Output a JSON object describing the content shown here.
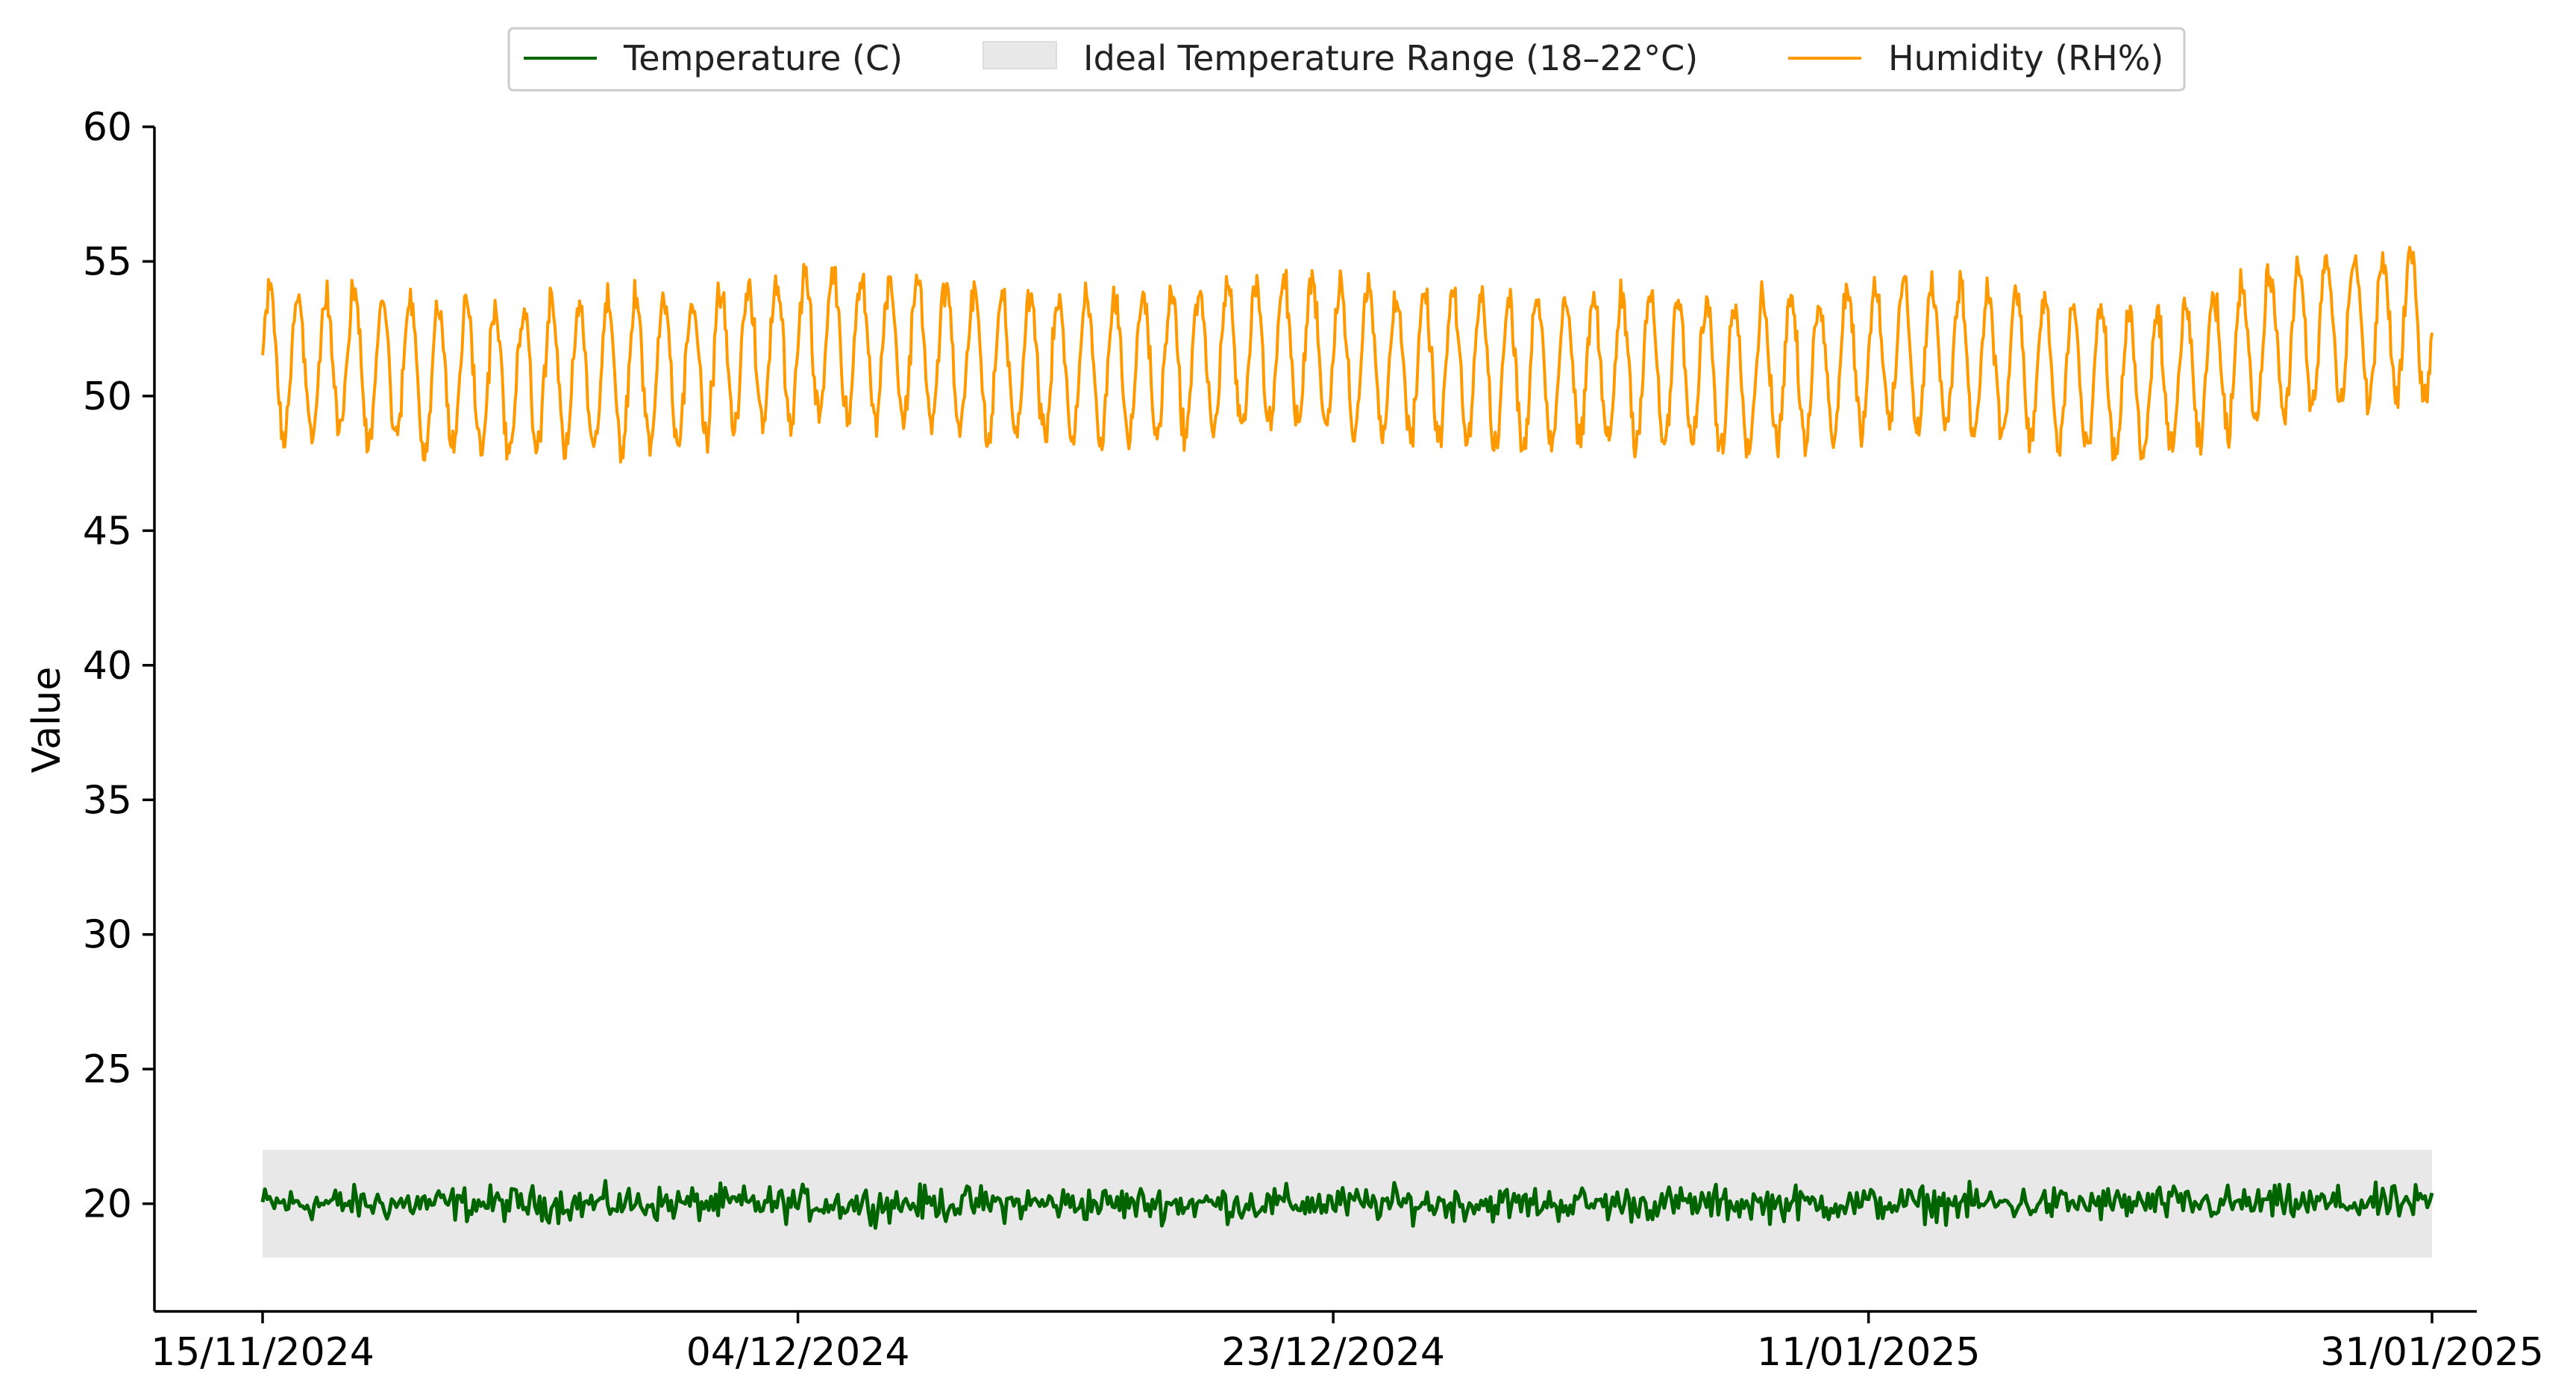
{
  "chart_data": {
    "type": "line",
    "title": "",
    "xlabel": "",
    "ylabel": "Value",
    "x_range": [
      "15/11/2024",
      "31/01/2025"
    ],
    "ylim": [
      16,
      60
    ],
    "y_ticks": [
      20,
      25,
      30,
      35,
      40,
      45,
      50,
      55,
      60
    ],
    "x_ticks": [
      "15/11/2024",
      "04/12/2024",
      "23/12/2024",
      "11/01/2025",
      "31/01/2025"
    ],
    "grid": false,
    "legend_position": "top-center",
    "band": {
      "name": "Ideal Temperature Range (18–22°C)",
      "y_min": 18,
      "y_max": 22,
      "x_start": "15/11/2024",
      "x_end": "31/01/2025",
      "color": "#e8e8e8"
    },
    "series": [
      {
        "name": "Temperature (C)",
        "color": "#006400",
        "mean": 20,
        "x_start": "15/11/2024",
        "x_end": "31/01/2025",
        "sample_every_hours": 2,
        "typical_range": [
          19.2,
          20.9
        ],
        "values_daily_mean": [
          20.0,
          20.0,
          20.0,
          20.0,
          20.0,
          20.0,
          20.0,
          20.0,
          20.0,
          20.0,
          20.0,
          20.0,
          20.0,
          20.0,
          20.0,
          20.0,
          20.0,
          20.0,
          20.0,
          20.0,
          20.0,
          20.0,
          20.0,
          20.0,
          20.0,
          20.0,
          20.0,
          20.0,
          20.0,
          20.0,
          20.0,
          20.0,
          20.0,
          20.0,
          20.0,
          20.0,
          20.0,
          20.0,
          20.0,
          20.0,
          20.0,
          20.0,
          20.0,
          20.0,
          20.0,
          20.0,
          20.0,
          20.0,
          20.0,
          20.0,
          20.0,
          20.0,
          20.0,
          20.0,
          20.0,
          20.0,
          20.0,
          20.0,
          20.0,
          20.0,
          20.0,
          20.0,
          20.0,
          20.0,
          20.0,
          20.0,
          20.0,
          20.0,
          20.0,
          20.0,
          20.0,
          20.0,
          20.0,
          20.0,
          20.0,
          20.0,
          20.0
        ],
        "noise": 0.55
      },
      {
        "name": "Humidity (RH%)",
        "color": "#ff9900",
        "x_start": "15/11/2024",
        "x_end": "31/01/2025",
        "sample_every_hours": 1,
        "cycle": "daily",
        "amplitude": 2.7,
        "noise": 0.55,
        "values_daily_mean": [
          51.3,
          51.2,
          51.0,
          51.4,
          50.9,
          51.1,
          50.5,
          50.8,
          50.6,
          50.4,
          50.8,
          50.7,
          50.6,
          50.9,
          51.0,
          51.0,
          51.2,
          51.5,
          51.6,
          51.8,
          52.0,
          51.9,
          51.7,
          51.8,
          51.6,
          51.3,
          51.0,
          51.2,
          51.1,
          50.9,
          51.0,
          51.1,
          51.2,
          51.3,
          51.4,
          51.5,
          51.6,
          51.7,
          51.6,
          51.4,
          51.2,
          51.0,
          51.1,
          51.0,
          50.8,
          50.9,
          51.0,
          50.9,
          51.0,
          51.1,
          50.8,
          50.9,
          50.7,
          50.9,
          51.0,
          50.8,
          51.4,
          51.5,
          51.6,
          51.4,
          51.5,
          51.3,
          51.2,
          51.0,
          50.7,
          50.5,
          50.4,
          50.3,
          50.6,
          51.0,
          51.5,
          51.9,
          52.0,
          52.3,
          52.5,
          52.4,
          52.6
        ]
      }
    ]
  }
}
